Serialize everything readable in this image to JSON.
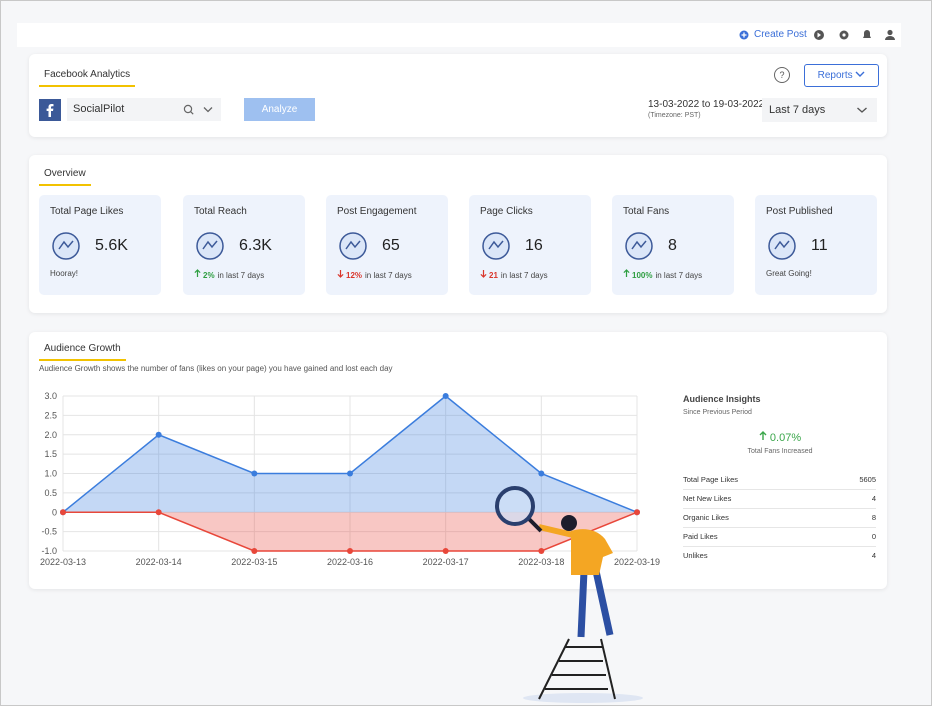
{
  "topbar": {
    "create_post": "Create Post"
  },
  "header": {
    "tab": "Facebook Analytics",
    "account": "SocialPilot",
    "analyze": "Analyze",
    "date_range": "13-03-2022 to 19-03-2022",
    "timezone": "(Timezone: PST)",
    "period": "Last 7 days",
    "help": "?",
    "reports": "Reports"
  },
  "overview": {
    "title": "Overview",
    "cards": [
      {
        "label": "Total Page Likes",
        "value": "5.6K",
        "note": "Hooray!"
      },
      {
        "label": "Total Reach",
        "value": "6.3K",
        "change": "2%",
        "direction": "up",
        "note": "in last 7 days"
      },
      {
        "label": "Post Engagement",
        "value": "65",
        "change": "12%",
        "direction": "down",
        "note": "in last 7 days"
      },
      {
        "label": "Page Clicks",
        "value": "16",
        "change": "21",
        "direction": "down",
        "note": "in last 7 days"
      },
      {
        "label": "Total Fans",
        "value": "8",
        "change": "100%",
        "direction": "up",
        "note": "in last 7 days"
      },
      {
        "label": "Post Published",
        "value": "11",
        "note": "Great Going!"
      }
    ]
  },
  "growth": {
    "title": "Audience Growth",
    "description": "Audience Growth shows the number of fans (likes on your page) you have gained and lost each day"
  },
  "chart_data": {
    "type": "area",
    "categories": [
      "2022-03-13",
      "2022-03-14",
      "2022-03-15",
      "2022-03-16",
      "2022-03-17",
      "2022-03-18",
      "2022-03-19"
    ],
    "series": [
      {
        "color": "#3b7ddd",
        "values": [
          0,
          2,
          1,
          1,
          3,
          1,
          0
        ]
      },
      {
        "color": "#e8473a",
        "values": [
          0,
          0,
          -1,
          -1,
          -1,
          -1,
          0
        ]
      }
    ],
    "ylim": [
      -1,
      3
    ],
    "yticks": [
      {
        "value": -1,
        "label": "-1.0"
      },
      {
        "value": -0.5,
        "label": "-0.5"
      },
      0,
      {
        "value": 0.5,
        "label": "0.5"
      },
      {
        "value": 1,
        "label": "1.0"
      },
      {
        "value": 1.5,
        "label": "1.5"
      },
      {
        "value": 2,
        "label": "2.0"
      },
      {
        "value": 2.5,
        "label": "2.5"
      },
      {
        "value": 3,
        "label": "3.0"
      }
    ],
    "grid": true
  },
  "insights": {
    "title": "Audience Insights",
    "subtitle": "Since Previous Period",
    "change": "0.07%",
    "direction": "up",
    "change_label": "Total Fans Increased",
    "rows": [
      [
        "Total Page Likes",
        5605
      ],
      [
        "Net New Likes",
        4
      ],
      [
        "Organic Likes",
        8
      ],
      [
        "Paid Likes",
        0
      ],
      [
        "Unlikes",
        4
      ]
    ]
  }
}
